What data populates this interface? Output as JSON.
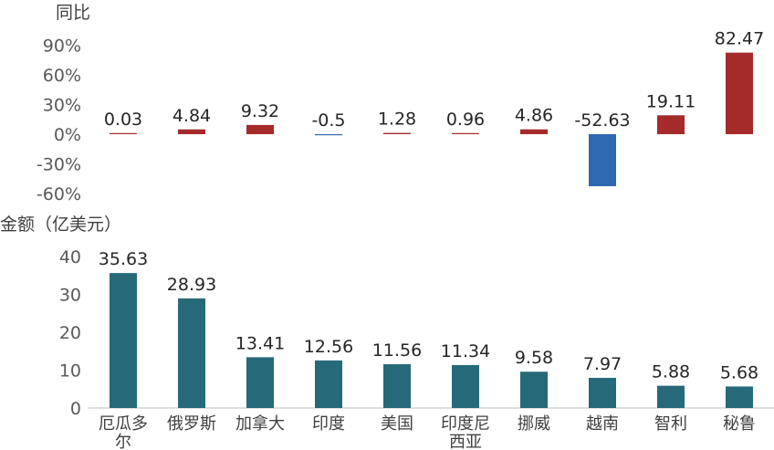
{
  "chart_data": [
    {
      "type": "bar",
      "ylabel": "同比",
      "yticks": [
        "90%",
        "60%",
        "30%",
        "0%",
        "-30%",
        "-60%"
      ],
      "ylim": [
        -60,
        90
      ],
      "categories": [
        "厄瓜多尔",
        "俄罗斯",
        "加拿大",
        "印度",
        "美国",
        "印度尼西亚",
        "挪威",
        "越南",
        "智利",
        "秘鲁"
      ],
      "values": [
        0.03,
        4.84,
        9.32,
        -0.5,
        1.28,
        0.96,
        4.86,
        -52.63,
        19.11,
        82.47
      ],
      "value_labels": [
        "0.03",
        "4.84",
        "9.32",
        "-0.5",
        "1.28",
        "0.96",
        "4.86",
        "-52.63",
        "19.11",
        "82.47"
      ],
      "colors": {
        "positive": "#a52a2a",
        "negative": "#2e68b0"
      },
      "grid": false
    },
    {
      "type": "bar",
      "ylabel": "金额（亿美元）",
      "yticks": [
        "40",
        "30",
        "20",
        "10",
        "0"
      ],
      "ylim": [
        0,
        40
      ],
      "categories": [
        "厄瓜多\n尔",
        "俄罗斯",
        "加拿大",
        "印度",
        "美国",
        "印度尼\n西亚",
        "挪威",
        "越南",
        "智利",
        "秘鲁"
      ],
      "values": [
        35.63,
        28.93,
        13.41,
        12.56,
        11.56,
        11.34,
        9.58,
        7.97,
        5.88,
        5.68
      ],
      "value_labels": [
        "35.63",
        "28.93",
        "13.41",
        "12.56",
        "11.56",
        "11.34",
        "9.58",
        "7.97",
        "5.88",
        "5.68"
      ],
      "colors": {
        "bar": "#266a79",
        "axis": "#bfbfbf"
      },
      "grid": false
    }
  ]
}
